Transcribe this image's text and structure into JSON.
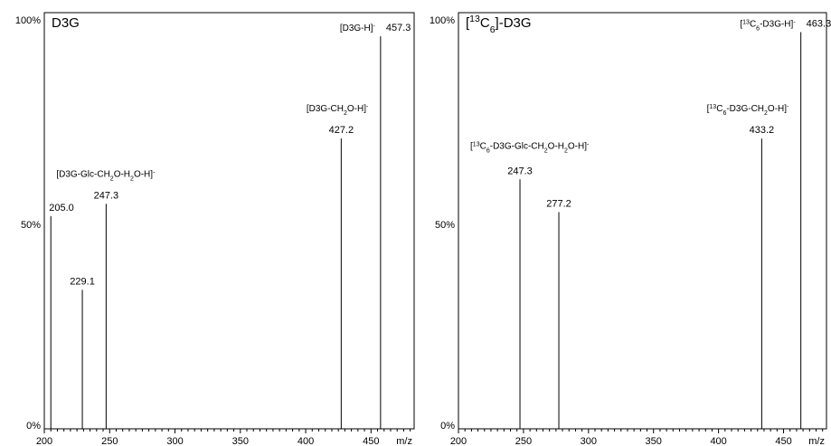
{
  "chart_data": [
    {
      "type": "bar",
      "title": "D3G",
      "xlabel": "m/z",
      "x_ticks": [
        "200",
        "250",
        "300",
        "350",
        "400",
        "450"
      ],
      "y_ticks": [
        "0%",
        "50%",
        "100%"
      ],
      "xlim": [
        200,
        483
      ],
      "ylim": [
        0,
        100
      ],
      "peaks": [
        {
          "mz": 205.0,
          "intensity": 52,
          "label": "205.0",
          "ion": ""
        },
        {
          "mz": 229.1,
          "intensity": 34,
          "label": "229.1",
          "ion": ""
        },
        {
          "mz": 247.3,
          "intensity": 55,
          "label": "247.3",
          "ion": "[D3G-Glc-CH₂O-H₂O-H]⁻"
        },
        {
          "mz": 427.2,
          "intensity": 71,
          "label": "427.2",
          "ion": "[D3G-CH₂O-H]⁻"
        },
        {
          "mz": 457.3,
          "intensity": 96,
          "label": "457.3",
          "ion": "[D3G-H]⁻"
        }
      ]
    },
    {
      "type": "bar",
      "title": "[¹³C₆]-D3G",
      "xlabel": "m/z",
      "x_ticks": [
        "200",
        "250",
        "300",
        "350",
        "400",
        "450"
      ],
      "y_ticks": [
        "0%",
        "50%",
        "100%"
      ],
      "xlim": [
        200,
        483
      ],
      "ylim": [
        0,
        100
      ],
      "peaks": [
        {
          "mz": 247.3,
          "intensity": 61,
          "label": "247.3",
          "ion": "[¹³C₆-D3G-Glc-CH₂O-H₂O-H]⁻"
        },
        {
          "mz": 277.2,
          "intensity": 53,
          "label": "277.2",
          "ion": ""
        },
        {
          "mz": 433.2,
          "intensity": 71,
          "label": "433.2",
          "ion": "[¹³C₆-D3G-CH₂O-H]⁻"
        },
        {
          "mz": 463.3,
          "intensity": 97,
          "label": "463.3",
          "ion": "[¹³C₆-D3G-H]⁻"
        }
      ]
    }
  ]
}
